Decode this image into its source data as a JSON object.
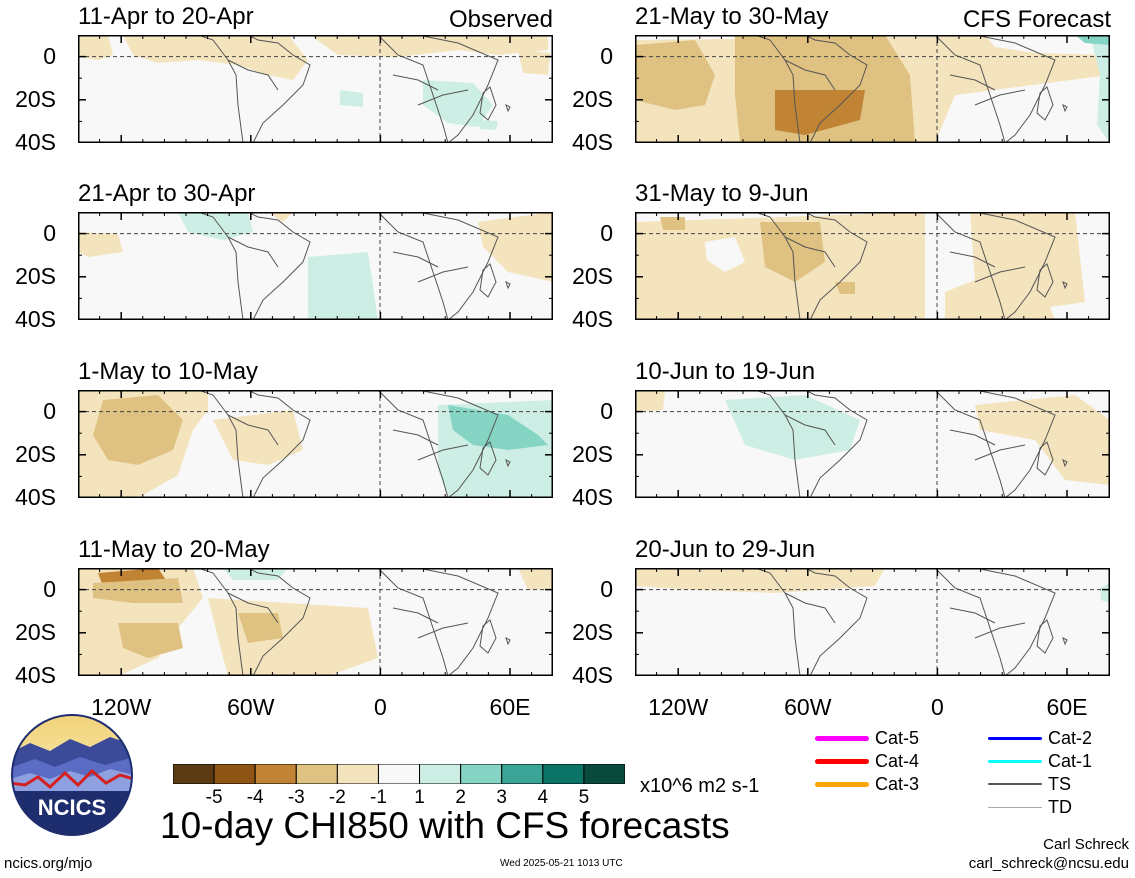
{
  "columns": {
    "left": {
      "label": "Observed"
    },
    "right": {
      "label": "CFS Forecast"
    }
  },
  "panels": [
    {
      "title": "11-Apr to 20-Apr",
      "column": "left",
      "row": 0
    },
    {
      "title": "21-Apr to 30-Apr",
      "column": "left",
      "row": 1
    },
    {
      "title": "1-May to 10-May",
      "column": "left",
      "row": 2
    },
    {
      "title": "11-May to 20-May",
      "column": "left",
      "row": 3
    },
    {
      "title": "21-May to 30-May",
      "column": "right",
      "row": 0
    },
    {
      "title": "31-May to 9-Jun",
      "column": "right",
      "row": 1
    },
    {
      "title": "10-Jun to 19-Jun",
      "column": "right",
      "row": 2
    },
    {
      "title": "20-Jun to 29-Jun",
      "column": "right",
      "row": 3
    }
  ],
  "axes": {
    "y_ticks": [
      "0",
      "20S",
      "40S"
    ],
    "x_ticks": [
      "120W",
      "60W",
      "0",
      "60E"
    ]
  },
  "chart_data": {
    "type": "heatmap",
    "title": "10-day CHI850 with CFS forecasts",
    "variable": "CHI850",
    "units": "x10^6 m2 s-1",
    "x_ticks_deg": [
      -120,
      -60,
      0,
      60
    ],
    "y_ticks_deg": [
      0,
      -20,
      -40
    ],
    "lon_range": [
      -140,
      80
    ],
    "lat_range": [
      -40,
      10
    ],
    "colorbar": {
      "tick_labels": [
        "-5",
        "-4",
        "-3",
        "-2",
        "-1",
        "1",
        "2",
        "3",
        "4",
        "5"
      ],
      "colors": [
        "#5b3a14",
        "#8e5515",
        "#c08434",
        "#dfc282",
        "#f4e4be",
        "#f8f8f8",
        "#cdeee4",
        "#86d4c4",
        "#3aa596",
        "#0c7367",
        "#0a4a3d"
      ]
    },
    "panels": [
      {
        "title": "11-Apr to 20-Apr",
        "source": "Observed"
      },
      {
        "title": "21-Apr to 30-Apr",
        "source": "Observed"
      },
      {
        "title": "1-May to 10-May",
        "source": "Observed"
      },
      {
        "title": "11-May to 20-May",
        "source": "Observed"
      },
      {
        "title": "21-May to 30-May",
        "source": "CFS Forecast"
      },
      {
        "title": "31-May to 9-Jun",
        "source": "CFS Forecast"
      },
      {
        "title": "10-Jun to 19-Jun",
        "source": "CFS Forecast"
      },
      {
        "title": "20-Jun to 29-Jun",
        "source": "CFS Forecast"
      }
    ]
  },
  "storm_legend": [
    {
      "label": "Cat-5",
      "color": "#ff00ff",
      "width": 5
    },
    {
      "label": "Cat-4",
      "color": "#ff0000",
      "width": 5
    },
    {
      "label": "Cat-3",
      "color": "#ffa500",
      "width": 5
    },
    {
      "label": "Cat-2",
      "color": "#0000ff",
      "width": 3
    },
    {
      "label": "Cat-1",
      "color": "#00ffff",
      "width": 3
    },
    {
      "label": "TS",
      "color": "#555555",
      "width": 2
    },
    {
      "label": "TD",
      "color": "#aaaaaa",
      "width": 1
    }
  ],
  "logo": {
    "text": "NCICS"
  },
  "footer": {
    "website": "ncics.org/mjo",
    "timestamp": "Wed 2025-05-21 1013 UTC",
    "author": "Carl Schreck",
    "email": "carl_schreck@ncsu.edu"
  }
}
